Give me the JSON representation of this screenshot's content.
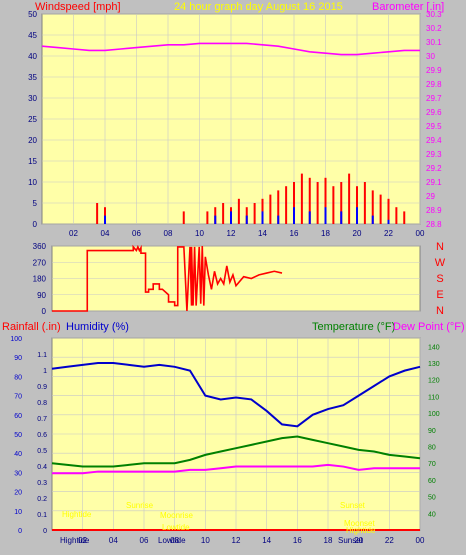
{
  "colors": {
    "background": "#c0c0c0",
    "plot_bg": "#ffffa8",
    "grid": "#c8c8c8",
    "wind": "#ff0000",
    "wind_gust_avg": "#0000ff",
    "barometer": "#ff00ff",
    "direction": "#ff0000",
    "humidity": "#0000cc",
    "temperature": "#008000",
    "dew_point": "#ff00ff",
    "rainfall": "#ff0000",
    "label_yellow": "#ffff00",
    "axis_text": "#000080"
  },
  "chart_data": [
    {
      "type": "line",
      "title": "24 hour graph day   August 16 2015",
      "ylabel": "Windspeed [mph]",
      "y2label": "Barometer [.in]",
      "x_ticks": [
        "02",
        "04",
        "06",
        "08",
        "10",
        "12",
        "14",
        "16",
        "18",
        "20",
        "22",
        "00"
      ],
      "ylim": [
        0,
        50
      ],
      "y_ticks": [
        0,
        5,
        10,
        15,
        20,
        25,
        30,
        35,
        40,
        45,
        50
      ],
      "y2lim": [
        28.8,
        30.3
      ],
      "y2_ticks": [
        "28.8",
        "28.9",
        "29",
        "29.1",
        "29.2",
        "29.3",
        "29.4",
        "29.5",
        "29.6",
        "29.7",
        "29.8",
        "29.9",
        "30",
        "30.1",
        "30.2",
        "30.3"
      ],
      "series": [
        {
          "axis": "y2",
          "x": [
            0,
            1,
            2,
            3,
            4,
            5,
            6,
            7,
            8,
            9,
            10,
            11,
            12,
            13,
            14,
            15,
            16,
            17,
            18,
            19,
            20,
            21,
            22,
            23,
            24
          ],
          "values": [
            30.07,
            30.06,
            30.05,
            30.04,
            30.04,
            30.05,
            30.06,
            30.07,
            30.08,
            30.08,
            30.09,
            30.09,
            30.09,
            30.09,
            30.08,
            30.07,
            30.05,
            30.03,
            30.02,
            30.01,
            30.01,
            30.02,
            30.03,
            30.04,
            30.04
          ]
        },
        {
          "axis": "y",
          "x": [
            3,
            3.5,
            4,
            4.5,
            5,
            6,
            7,
            8,
            9,
            10,
            10.5,
            11,
            11.5,
            12,
            12.5,
            13,
            13.5,
            14,
            14.5,
            15,
            15.5,
            16,
            16.5,
            17,
            17.5,
            18,
            18.5,
            19,
            19.5,
            20,
            20.5,
            21,
            21.5,
            22,
            22.5,
            23
          ],
          "values": [
            0,
            5,
            4,
            0,
            0,
            0,
            0,
            0,
            3,
            0,
            3,
            4,
            5,
            4,
            6,
            4,
            5,
            6,
            7,
            8,
            9,
            10,
            12,
            11,
            10,
            11,
            9,
            10,
            12,
            9,
            10,
            8,
            7,
            6,
            4,
            3
          ]
        },
        {
          "axis": "y",
          "x": [
            3,
            4,
            5,
            10,
            11,
            12,
            13,
            14,
            15,
            16,
            17,
            18,
            19,
            20,
            21,
            22,
            23
          ],
          "values": [
            0,
            2,
            0,
            0,
            2,
            3,
            2,
            3,
            2,
            4,
            3,
            4,
            3,
            4,
            2,
            1,
            0
          ]
        }
      ]
    },
    {
      "type": "line",
      "y_ticks": [
        0,
        90,
        180,
        270,
        360
      ],
      "ylim": [
        0,
        360
      ],
      "right_labels": [
        "N",
        "W",
        "S",
        "E",
        "N"
      ],
      "series": [
        {
          "x": [
            0,
            2.3,
            2.3,
            5.3,
            5.3,
            5.5,
            5.6,
            5.7,
            5.8,
            5.8,
            6.1,
            6.1,
            6.3,
            6.3,
            6.6,
            6.6,
            7.0,
            7.0,
            7.2,
            7.6,
            7.6,
            8.0,
            8.0,
            8.2,
            8.2,
            8.6,
            8.8,
            9.0,
            9.1,
            9.1,
            9.2,
            9.3,
            9.4,
            9.6,
            9.7,
            9.8,
            9.9,
            10.0,
            10.2,
            10.4,
            10.6,
            10.8,
            11.0,
            11.2,
            11.4,
            11.6,
            11.8,
            12.0,
            12.5,
            13.0,
            13.5,
            14.0,
            14.5,
            15.0
          ],
          "values": [
            0,
            0,
            335,
            335,
            355,
            335,
            355,
            335,
            350,
            320,
            320,
            105,
            105,
            120,
            120,
            150,
            150,
            120,
            120,
            90,
            50,
            50,
            30,
            30,
            355,
            355,
            0,
            355,
            30,
            355,
            30,
            355,
            30,
            355,
            40,
            360,
            30,
            300,
            200,
            120,
            220,
            150,
            180,
            150,
            250,
            160,
            200,
            140,
            190,
            180,
            200,
            210,
            220,
            210
          ]
        }
      ]
    },
    {
      "type": "line",
      "labels": {
        "rainfall": "Rainfall (.in)",
        "humidity": "Humidity (%)",
        "temperature": "Temperature (°F)",
        "dew_point": "Dew Point (°F)"
      },
      "x_ticks": [
        "02",
        "04",
        "06",
        "08",
        "10",
        "12",
        "14",
        "16",
        "18",
        "20",
        "22",
        "00"
      ],
      "rain_lim": [
        0,
        1.2
      ],
      "rain_ticks": [
        "0",
        "0.1",
        "0.2",
        "0.3",
        "0.4",
        "0.5",
        "0.6",
        "0.7",
        "0.8",
        "0.9",
        "1",
        "1.1"
      ],
      "humidity_lim": [
        0,
        100
      ],
      "humidity_ticks": [
        0,
        10,
        20,
        30,
        40,
        50,
        60,
        70,
        80,
        90,
        100
      ],
      "temp_lim": [
        30,
        145
      ],
      "temp_ticks": [
        40,
        50,
        60,
        70,
        80,
        90,
        100,
        110,
        120,
        130,
        140
      ],
      "series": [
        {
          "name": "Humidity (%)",
          "x": [
            0,
            1,
            2,
            3,
            4,
            5,
            6,
            7,
            8,
            9,
            10,
            11,
            12,
            13,
            14,
            15,
            16,
            17,
            18,
            19,
            20,
            21,
            22,
            23,
            24
          ],
          "values": [
            84,
            85,
            86,
            87,
            87,
            86,
            85,
            86,
            85,
            83,
            70,
            68,
            69,
            68,
            62,
            55,
            54,
            60,
            63,
            65,
            70,
            75,
            80,
            83,
            85
          ]
        },
        {
          "name": "Temperature (°F)",
          "x": [
            0,
            1,
            2,
            3,
            4,
            5,
            6,
            7,
            8,
            9,
            10,
            11,
            12,
            13,
            14,
            15,
            16,
            17,
            18,
            19,
            20,
            21,
            22,
            23,
            24
          ],
          "values": [
            70,
            69,
            68,
            68,
            68,
            69,
            70,
            70,
            70,
            72,
            75,
            77,
            79,
            81,
            83,
            85,
            86,
            84,
            82,
            80,
            78,
            77,
            75,
            74,
            73
          ]
        },
        {
          "name": "Dew Point (°F)",
          "x": [
            0,
            1,
            2,
            3,
            4,
            5,
            6,
            7,
            8,
            9,
            10,
            11,
            12,
            13,
            14,
            15,
            16,
            17,
            18,
            19,
            20,
            21,
            22,
            23,
            24
          ],
          "values": [
            64,
            64,
            64,
            65,
            65,
            65,
            65,
            65,
            65,
            66,
            66,
            67,
            68,
            68,
            68,
            68,
            68,
            68,
            69,
            68,
            66,
            67,
            67,
            67,
            67
          ]
        },
        {
          "name": "Rainfall (.in)",
          "x": [
            0,
            24
          ],
          "values": [
            0,
            0
          ]
        }
      ],
      "annotations": [
        "Hightide",
        "Sunrise",
        "Moonrise",
        "Lowtide",
        "Sunset",
        "Moonset",
        "Hightide"
      ],
      "bottom_labels": [
        "Hightide",
        "Lowtide",
        "Sunset"
      ]
    }
  ]
}
